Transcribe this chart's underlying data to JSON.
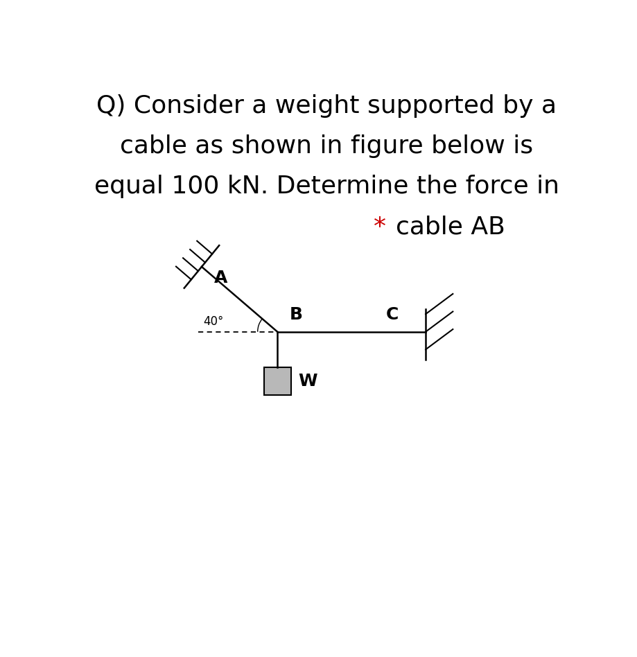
{
  "title_line1": "Q) Consider a weight supported by a",
  "title_line2": "cable as shown in figure below is",
  "title_line3": "equal 100 kN. Determine the force in",
  "title_fontsize": 26,
  "bg_color": "#ffffff",
  "text_color": "#000000",
  "star_color": "#cc0000",
  "fig_width": 9.2,
  "fig_height": 9.48,
  "dpi": 100,
  "angle_40_label": "40°",
  "label_A": "A",
  "label_B": "B",
  "label_C": "C",
  "label_W": "W"
}
